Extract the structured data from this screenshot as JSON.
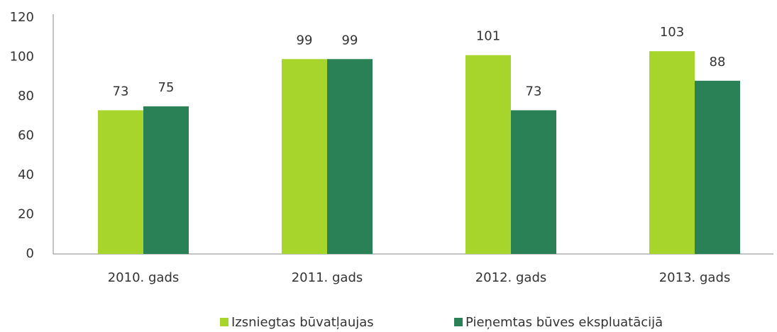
{
  "chart_data": {
    "type": "bar",
    "categories": [
      "2010. gads",
      "2011. gads",
      "2012. gads",
      "2013. gads"
    ],
    "series": [
      {
        "name": "Izsniegtas būvatļaujas",
        "color": "#a8d52c",
        "values": [
          73,
          99,
          101,
          103
        ]
      },
      {
        "name": "Pieņemtas būves ekspluatācijā",
        "color": "#2a8156",
        "values": [
          75,
          99,
          73,
          88
        ]
      }
    ],
    "ylim": [
      0,
      120
    ],
    "yticks": [
      0,
      20,
      40,
      60,
      80,
      100,
      120
    ],
    "grid": false,
    "legend": "bottom"
  }
}
